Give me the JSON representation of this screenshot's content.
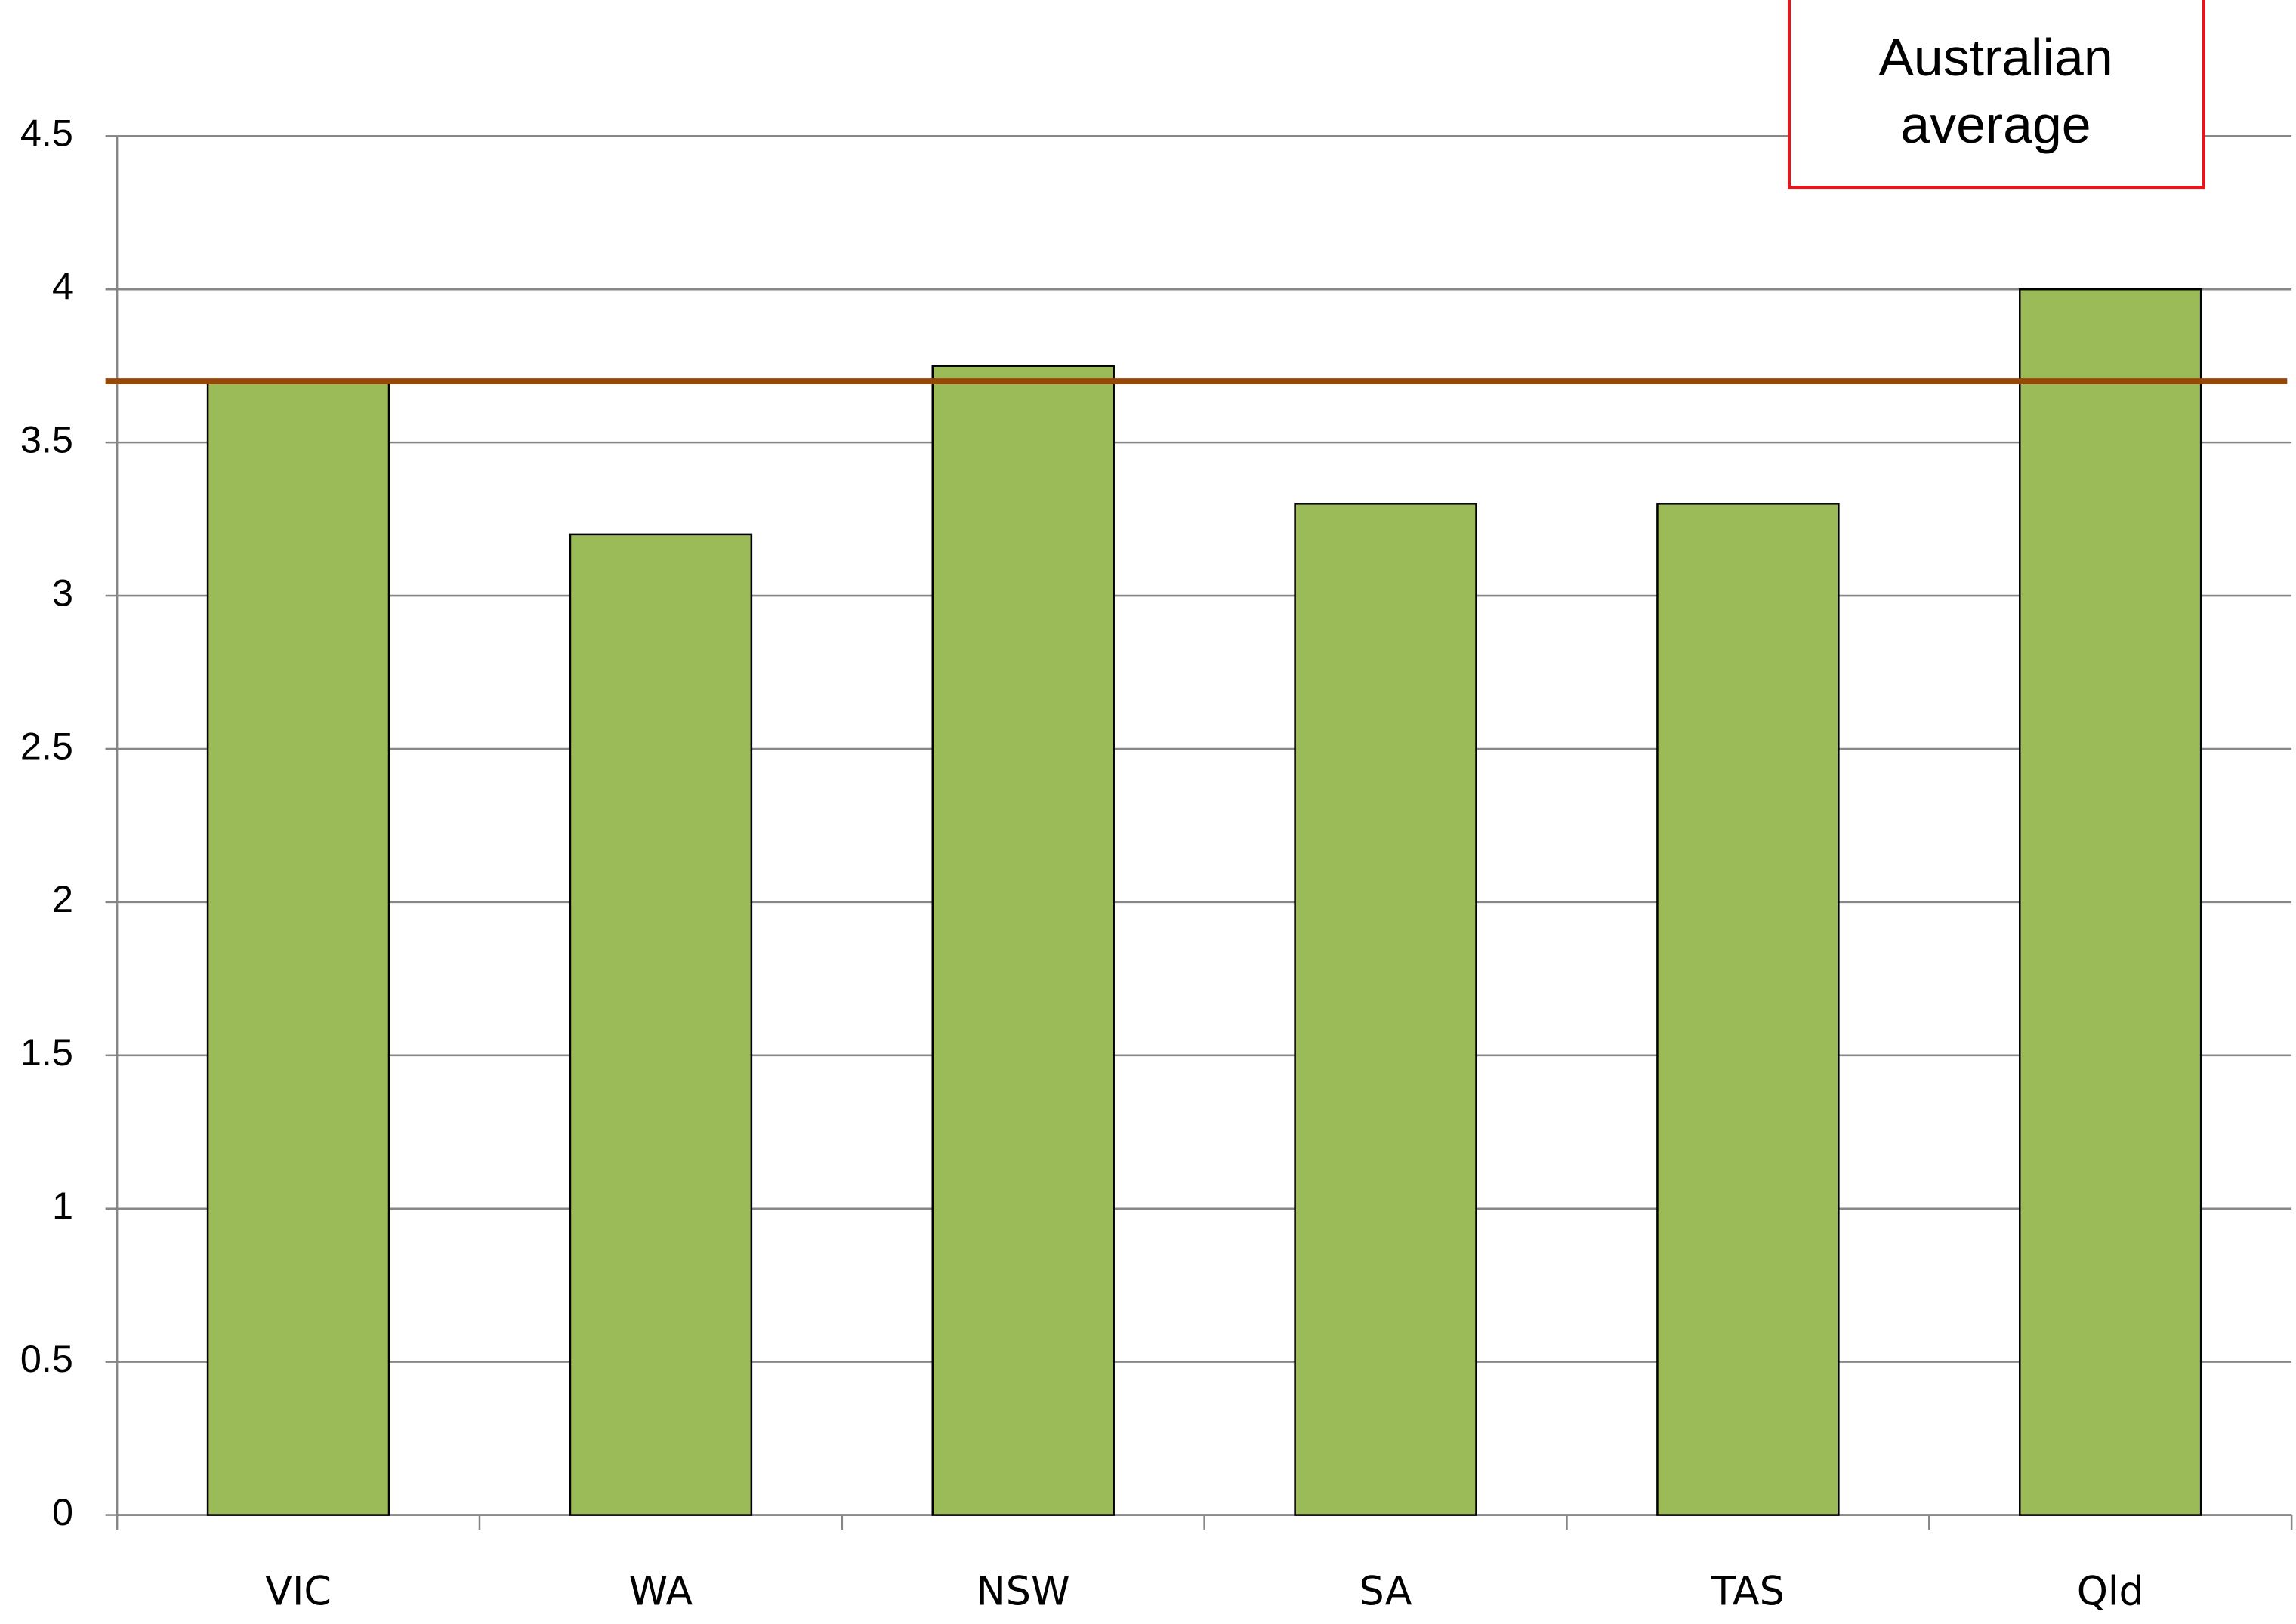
{
  "chart_data": {
    "type": "bar",
    "categories": [
      "VIC",
      "WA",
      "NSW",
      "SA",
      "TAS",
      "Qld"
    ],
    "values": [
      3.7,
      3.2,
      3.75,
      3.3,
      3.3,
      4.0
    ],
    "color": "#9bbb59",
    "ylim": [
      0,
      4.5
    ],
    "yticks": [
      0,
      0.5,
      1,
      1.5,
      2,
      2.5,
      3,
      3.5,
      4,
      4.5
    ],
    "grid": true,
    "reference_line": {
      "value": 3.7,
      "color": "#974706",
      "label_lines": [
        "Australian",
        "average"
      ]
    }
  }
}
